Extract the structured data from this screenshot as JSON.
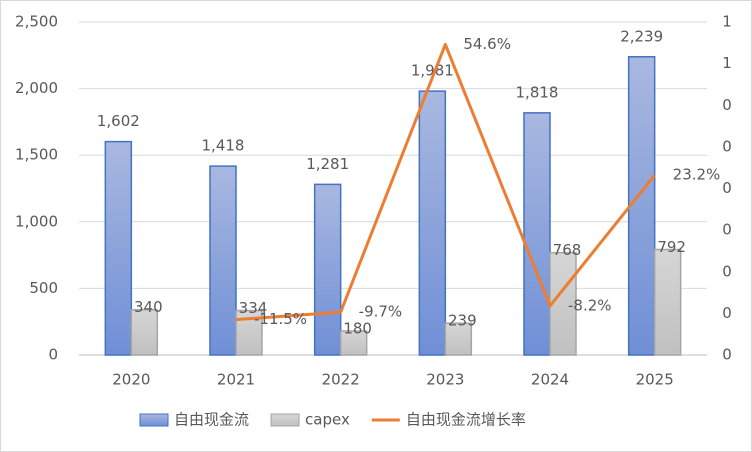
{
  "chart_data": {
    "type": "bar",
    "categories": [
      "2020",
      "2021",
      "2022",
      "2023",
      "2024",
      "2025"
    ],
    "series": [
      {
        "name": "自由现金流",
        "color": "#4472c4",
        "values": [
          1602,
          1418,
          1281,
          1981,
          1818,
          2239
        ],
        "value_labels": [
          "1,602",
          "1,418",
          "1,281",
          "1,981",
          "1,818",
          "2,239"
        ]
      },
      {
        "name": "capex",
        "color": "#a5a5a5",
        "values": [
          340,
          334,
          180,
          239,
          768,
          792
        ]
      },
      {
        "name": "自由现金流增长率",
        "type": "line",
        "axis": "y2",
        "color": "#ed7d31",
        "values": [
          null,
          -0.115,
          -0.097,
          0.546,
          -0.082,
          0.232
        ],
        "value_labels": [
          null,
          "-11.5%",
          "-9.7%",
          "54.6%",
          "-8.2%",
          "23.2%"
        ]
      }
    ],
    "ylim": [
      0,
      2500
    ],
    "yticks": [
      0,
      {
        "value": 500,
        "label": "500"
      },
      {
        "value": 1000,
        "label": "1,000"
      },
      {
        "value": 1500,
        "label": "1,500"
      },
      {
        "value": 2000,
        "label": "2,000"
      },
      {
        "value": 2500,
        "label": "2,500"
      }
    ],
    "y2lim": [
      -0.2,
      0.6
    ],
    "y2ticks": [
      {
        "value": -0.2,
        "label": "0"
      },
      {
        "value": -0.1,
        "label": "0"
      },
      {
        "value": 0,
        "label": "0"
      },
      {
        "value": 0.1,
        "label": "0"
      },
      {
        "value": 0.2,
        "label": "0"
      },
      {
        "value": 0.3,
        "label": "0"
      },
      {
        "value": 0.4,
        "label": "0"
      },
      {
        "value": 0.5,
        "label": "1"
      },
      {
        "value": 0.6,
        "label": "1"
      }
    ],
    "grid": true,
    "legend": "bottom"
  }
}
